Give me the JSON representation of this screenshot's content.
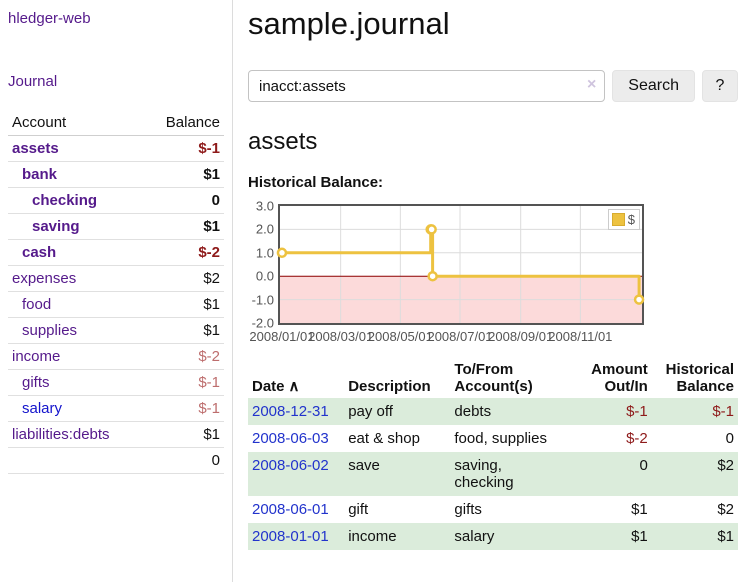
{
  "app": {
    "brand": "hledger-web"
  },
  "colors": {
    "link_purple": "#551a8b",
    "link_blue": "#2233cc",
    "negative_strong": "#8e1a1a",
    "negative_soft": "#bd6d6d",
    "row_green": "#dbecdb",
    "chart_line_yellow": "#edc240",
    "negative_zone_pink": "#fcdada",
    "zero_line_red": "#8b0000",
    "axis_gray": "#545454"
  },
  "sidebar": {
    "journal_label": "Journal",
    "accounts_table": {
      "headers": {
        "account": "Account",
        "balance": "Balance"
      },
      "rows": [
        {
          "name": "assets",
          "balance": "$-1",
          "indent": 1,
          "bold": true,
          "balance_style": "neg-strong",
          "link_color": "purple"
        },
        {
          "name": "bank",
          "balance": "$1",
          "indent": 2,
          "bold": true,
          "balance_style": null,
          "link_color": "purple"
        },
        {
          "name": "checking",
          "balance": "0",
          "indent": 3,
          "bold": true,
          "balance_style": null,
          "link_color": "purple"
        },
        {
          "name": "saving",
          "balance": "$1",
          "indent": 3,
          "bold": true,
          "balance_style": null,
          "link_color": "purple"
        },
        {
          "name": "cash",
          "balance": "$-2",
          "indent": 2,
          "bold": true,
          "balance_style": "neg-strong",
          "link_color": "purple"
        },
        {
          "name": "expenses",
          "balance": "$2",
          "indent": 1,
          "bold": false,
          "balance_style": null,
          "link_color": "purple"
        },
        {
          "name": "food",
          "balance": "$1",
          "indent": 2,
          "bold": false,
          "balance_style": null,
          "link_color": "purple"
        },
        {
          "name": "supplies",
          "balance": "$1",
          "indent": 2,
          "bold": false,
          "balance_style": null,
          "link_color": "purple"
        },
        {
          "name": "income",
          "balance": "$-2",
          "indent": 1,
          "bold": false,
          "balance_style": "neg-soft",
          "link_color": "purple"
        },
        {
          "name": "gifts",
          "balance": "$-1",
          "indent": 2,
          "bold": false,
          "balance_style": "neg-soft",
          "link_color": "purple"
        },
        {
          "name": "salary",
          "balance": "$-1",
          "indent": 2,
          "bold": false,
          "balance_style": "neg-soft",
          "link_color": "blue"
        },
        {
          "name": "liabilities:debts",
          "balance": "$1",
          "indent": 1,
          "bold": false,
          "balance_style": null,
          "link_color": "purple"
        }
      ],
      "total": "0"
    }
  },
  "main": {
    "title": "sample.journal",
    "search": {
      "value": "inacct:assets",
      "clear_icon": "×",
      "search_button_label": "Search",
      "help_button_label": "?"
    },
    "account_heading": "assets",
    "chart_heading": "Historical Balance:"
  },
  "chart_data": {
    "type": "line",
    "style": "step-after",
    "title": "Historical Balance",
    "series": [
      {
        "name": "$",
        "color": "#edc240",
        "points": [
          [
            "2008-01-01",
            1
          ],
          [
            "2008-06-01",
            2
          ],
          [
            "2008-06-02",
            2
          ],
          [
            "2008-06-03",
            0
          ],
          [
            "2008-12-31",
            -1
          ]
        ]
      }
    ],
    "xlim": [
      "2007-12-30",
      "2009-01-03"
    ],
    "ylim": [
      -2.0,
      3.0
    ],
    "y_ticks": [
      3.0,
      2.0,
      1.0,
      0.0,
      -1.0,
      -2.0
    ],
    "y_tick_labels": [
      "3.0",
      "2.0",
      "1.0",
      "0.0",
      "-1.0",
      "-2.0"
    ],
    "x_tick_labels": [
      "2008/01/01",
      "2008/03/01",
      "2008/05/01",
      "2008/07/01",
      "2008/09/01",
      "2008/11/01"
    ],
    "legend": {
      "position": "top-right",
      "label": "$"
    },
    "negative_zone_shaded": true,
    "grid": true
  },
  "register_table": {
    "headers": {
      "date": "Date",
      "sort_icon": "∧",
      "description": "Description",
      "accounts": "To/From Account(s)",
      "amount": "Amount Out/In",
      "balance": "Historical Balance"
    },
    "rows": [
      {
        "date": "2008-12-31",
        "description": "pay off",
        "accounts": "debts",
        "amount": "$-1",
        "balance": "$-1"
      },
      {
        "date": "2008-06-03",
        "description": "eat & shop",
        "accounts": "food, supplies",
        "amount": "$-2",
        "balance": "0"
      },
      {
        "date": "2008-06-02",
        "description": "save",
        "accounts": "saving,\nchecking",
        "amount": "0",
        "balance": "$2"
      },
      {
        "date": "2008-06-01",
        "description": "gift",
        "accounts": "gifts",
        "amount": "$1",
        "balance": "$2"
      },
      {
        "date": "2008-01-01",
        "description": "income",
        "accounts": "salary",
        "amount": "$1",
        "balance": "$1"
      }
    ]
  }
}
